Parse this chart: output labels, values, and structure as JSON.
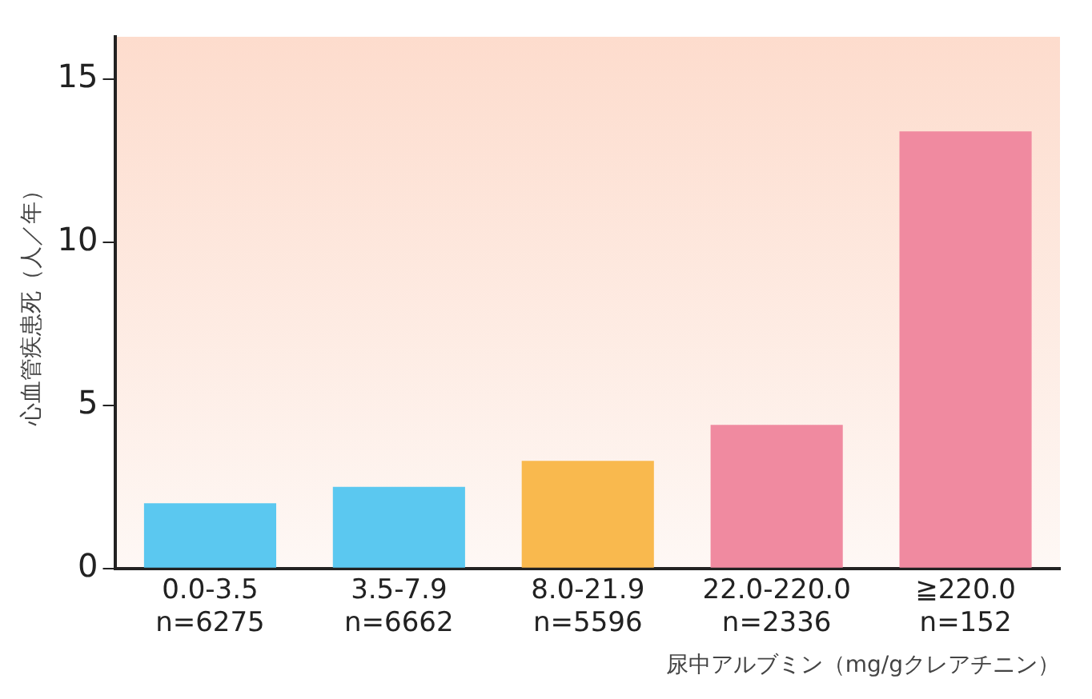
{
  "chart_data": {
    "type": "bar",
    "ylabel": "心血管疾患死（人／年）",
    "xlabel": "尿中アルブミン（mg/gクレアチニン）",
    "categories": [
      "0.0-3.5\nn=6275",
      "3.5-7.9\nn=6662",
      "8.0-21.9\nn=5596",
      "22.0-220.0\nn=2336",
      "≧220.0\nn=152"
    ],
    "values": [
      2.0,
      2.5,
      3.3,
      4.4,
      13.4
    ],
    "colors": [
      "#5bc8f0",
      "#5bc8f0",
      "#f9b94e",
      "#f08aa0",
      "#f08aa0"
    ],
    "ylim": [
      0,
      16.3
    ],
    "yticks": [
      0,
      5,
      10,
      15
    ],
    "grid": false,
    "legend": false
  }
}
